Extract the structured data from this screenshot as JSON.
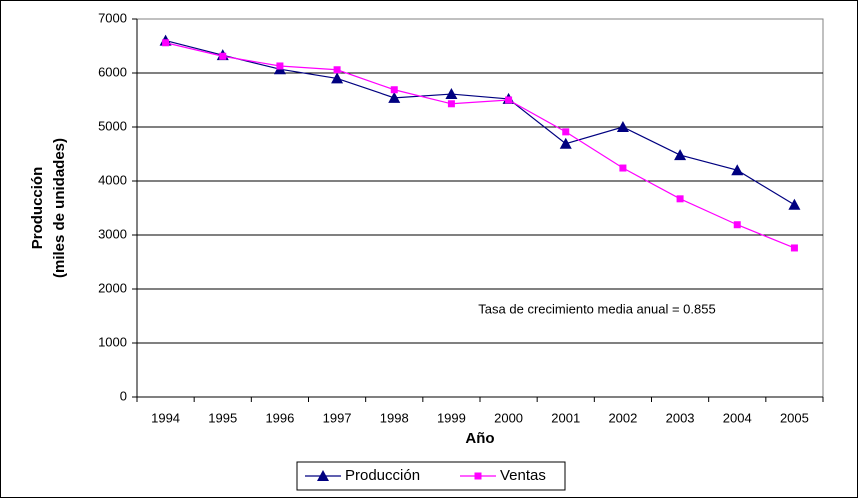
{
  "chart_data": {
    "type": "line",
    "y_label": [
      "Producción",
      "(miles de unidades)"
    ],
    "x_label": "Año",
    "annotation": "Tasa de crecimiento media anual = 0.855",
    "categories": [
      "1994",
      "1995",
      "1996",
      "1997",
      "1998",
      "1999",
      "2000",
      "2001",
      "2002",
      "2003",
      "2004",
      "2005"
    ],
    "series": [
      {
        "name": "Producción",
        "color": "#000080",
        "marker": "triangle",
        "values": [
          6600,
          6330,
          6070,
          5900,
          5540,
          5610,
          5520,
          4690,
          5000,
          4480,
          4200,
          3560
        ]
      },
      {
        "name": "Ventas",
        "color": "#ff00ff",
        "marker": "square",
        "values": [
          6560,
          6310,
          6130,
          6060,
          5690,
          5430,
          5500,
          4910,
          4240,
          3670,
          3190,
          2760
        ]
      }
    ],
    "ylim": [
      0,
      7000
    ],
    "yticks": [
      0,
      1000,
      2000,
      3000,
      4000,
      5000,
      6000,
      7000
    ],
    "grid": true,
    "legend": "bottom"
  }
}
